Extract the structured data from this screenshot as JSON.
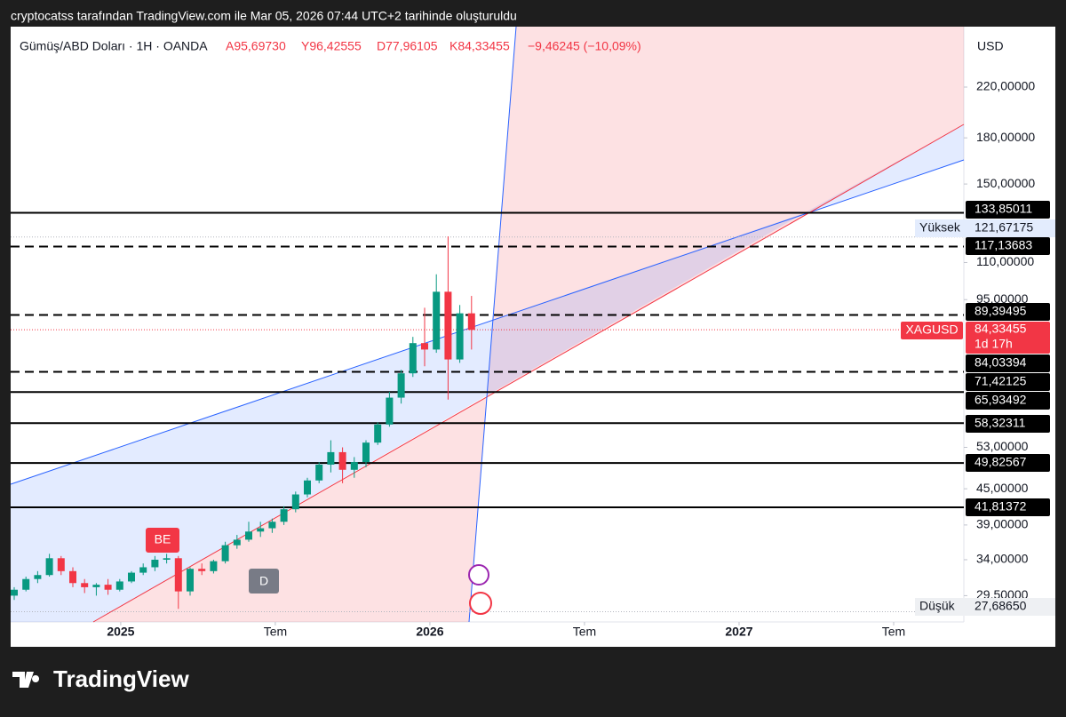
{
  "header": {
    "attribution": "cryptocatss tarafından TradingView.com ile Mar 05, 2026 07:44 UTC+2 tarihinde oluşturuldu"
  },
  "chart_data": {
    "type": "candlestick",
    "title": "Gümüş/ABD Doları · 1H · OANDA",
    "ohlc": [
      "A95,69730",
      "Y96,42555",
      "D77,96105",
      "K84,33455",
      "−9,46245 (−10,09%)"
    ],
    "currency": "USD",
    "log_scale": true,
    "up_color": "#089981",
    "down_color": "#f23645",
    "ylim": [
      26.59,
      279.3
    ],
    "yticks": [
      {
        "value": 220,
        "label": "220,00000"
      },
      {
        "value": 180,
        "label": "180,00000"
      },
      {
        "value": 150,
        "label": "150,00000"
      },
      {
        "value": 110,
        "label": "110,00000"
      },
      {
        "value": 95,
        "label": "95,00000"
      },
      {
        "value": 53,
        "label": "53,00000"
      },
      {
        "value": 45,
        "label": "45,00000"
      },
      {
        "value": 39,
        "label": "39,00000"
      },
      {
        "value": 34,
        "label": "34,00000"
      },
      {
        "value": 29.5,
        "label": "29,50000"
      }
    ],
    "xlim": [
      2024.644,
      2027.727
    ],
    "xticks": [
      {
        "value": 2025,
        "label": "2025"
      },
      {
        "value": 2025.5,
        "label": "Tem"
      },
      {
        "value": 2026,
        "label": "2026"
      },
      {
        "value": 2026.5,
        "label": "Tem"
      },
      {
        "value": 2027,
        "label": "2027"
      },
      {
        "value": 2027.5,
        "label": "Tem"
      }
    ],
    "levels": [
      {
        "value": 133.85011,
        "label": "133,85011",
        "style": "solid"
      },
      {
        "value": 117.13683,
        "label": "117,13683",
        "style": "dashed"
      },
      {
        "value": 89.39495,
        "label": "89,39495",
        "style": "dashed"
      },
      {
        "value": 84.03394,
        "label": "84,03394",
        "style": "none"
      },
      {
        "value": 71.42125,
        "label": "71,42125",
        "style": "dashed"
      },
      {
        "value": 65.93492,
        "label": "65,93492",
        "style": "solid"
      },
      {
        "value": 58.32311,
        "label": "58,32311",
        "style": "solid"
      },
      {
        "value": 49.82567,
        "label": "49,82567",
        "style": "solid"
      },
      {
        "value": 41.81372,
        "label": "41,81372",
        "style": "solid"
      }
    ],
    "high": {
      "name": "Yüksek",
      "value": 121.67175,
      "label": "121,67175"
    },
    "low": {
      "name": "Düşük",
      "value": 27.6865,
      "label": "27,68650"
    },
    "last": {
      "name": "XAGUSD",
      "value": 84.33455,
      "label": "84,33455",
      "countdown": "1d 17h"
    },
    "markers": [
      "BE",
      "D"
    ],
    "candles": [
      [
        29.5,
        30.5,
        29,
        30.2
      ],
      [
        30.2,
        31.8,
        30,
        31.5
      ],
      [
        31.5,
        32.5,
        31,
        32
      ],
      [
        32,
        34.8,
        31.8,
        34.2
      ],
      [
        34.2,
        34.5,
        32,
        32.5
      ],
      [
        32.5,
        33,
        30.5,
        31
      ],
      [
        31,
        31.5,
        29.8,
        30.5
      ],
      [
        30.5,
        31,
        29.5,
        30.8
      ],
      [
        30.8,
        31.5,
        29.6,
        30.2
      ],
      [
        30.2,
        31.5,
        30,
        31.2
      ],
      [
        31.2,
        32.5,
        31,
        32.3
      ],
      [
        32.3,
        33.5,
        32,
        33
      ],
      [
        33,
        34.5,
        32.5,
        34
      ],
      [
        34,
        34.8,
        33.5,
        34.2
      ],
      [
        34.2,
        34.5,
        28,
        30
      ],
      [
        30,
        33,
        29.5,
        32.8
      ],
      [
        32.8,
        33.5,
        32,
        32.5
      ],
      [
        32.5,
        34,
        32.2,
        33.8
      ],
      [
        33.8,
        36.5,
        33.5,
        36
      ],
      [
        36,
        37.5,
        35.5,
        36.8
      ],
      [
        36.8,
        39.5,
        36.5,
        38
      ],
      [
        38,
        39.5,
        37.2,
        38.5
      ],
      [
        38.5,
        40,
        37.8,
        39.5
      ],
      [
        39.5,
        42,
        39,
        41.5
      ],
      [
        41.5,
        44.5,
        41,
        44
      ],
      [
        44,
        47,
        43.5,
        46.5
      ],
      [
        46.5,
        50,
        46,
        49.5
      ],
      [
        49.5,
        54.5,
        48,
        52
      ],
      [
        52,
        53,
        46,
        48.5
      ],
      [
        48.5,
        51,
        47,
        50
      ],
      [
        50,
        54.5,
        49,
        54
      ],
      [
        54,
        58.5,
        53.5,
        58
      ],
      [
        58,
        66,
        57.5,
        64.5
      ],
      [
        64.5,
        72,
        63,
        71
      ],
      [
        71,
        82,
        70,
        80
      ],
      [
        80,
        92,
        73,
        78
      ],
      [
        78,
        105,
        77,
        98
      ],
      [
        98,
        122,
        64,
        75
      ],
      [
        75,
        93,
        74,
        90
      ],
      [
        90,
        96.4,
        78,
        84.3
      ]
    ]
  },
  "footer": {
    "brand": "TradingView"
  }
}
